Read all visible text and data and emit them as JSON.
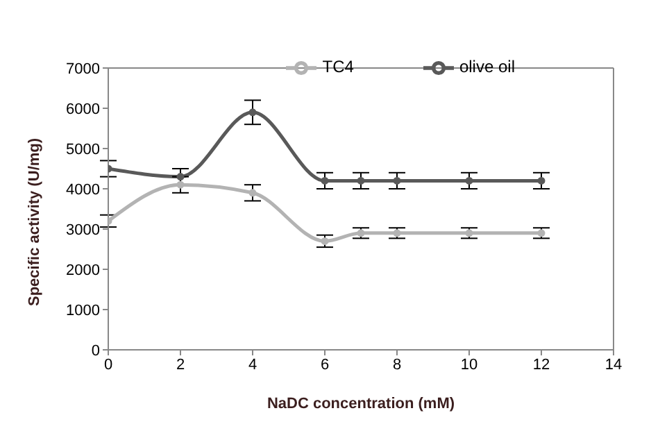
{
  "chart_data": {
    "type": "line",
    "xlabel": "NaDC concentration (mM)",
    "ylabel": "Specific activity  (U/mg)",
    "x": [
      0,
      2,
      4,
      6,
      7,
      8,
      10,
      12
    ],
    "series": [
      {
        "name": "olive oil",
        "color": "#595959",
        "values": [
          4500,
          4300,
          5900,
          4200,
          4200,
          4200,
          4200,
          4200
        ],
        "errors": [
          200,
          200,
          300,
          200,
          200,
          200,
          200,
          200
        ]
      },
      {
        "name": "TC4",
        "color": "#b3b3b3",
        "values": [
          3200,
          4100,
          3900,
          2700,
          2900,
          2900,
          2900,
          2900
        ],
        "errors": [
          150,
          200,
          200,
          150,
          130,
          130,
          130,
          130
        ]
      }
    ],
    "xlim": [
      0,
      14
    ],
    "xticks": [
      0,
      2,
      4,
      6,
      8,
      10,
      12,
      14
    ],
    "ylim": [
      0,
      7000
    ],
    "yticks": [
      0,
      1000,
      2000,
      3000,
      4000,
      5000,
      6000,
      7000
    ],
    "grid": false,
    "legend": "top right",
    "marker": "circle",
    "line_style": "solid"
  }
}
